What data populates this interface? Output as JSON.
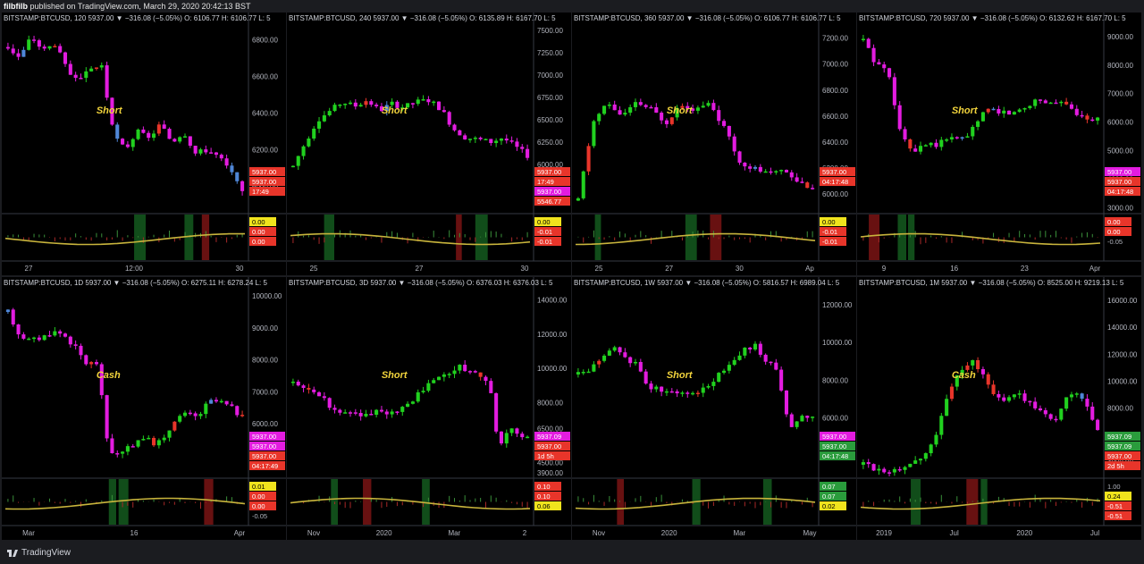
{
  "header": {
    "author": "filbfilb",
    "published": "published on TradingView.com, March 29, 2020 20:42:13 BST"
  },
  "footer": {
    "brand": "TradingView"
  },
  "colors": {
    "up": "#21d11f",
    "down": "#e31ce0",
    "red": "#e8352a",
    "blue": "#4f87d8",
    "ma": "#c8b43c",
    "annot": "#f1d33c",
    "arrow": "#3c8ad8"
  },
  "chart_data": [
    {
      "type": "candlestick",
      "header": "BITSTAMP:BTCUSD, 120  5937.00 ▼ −316.08 (−5.05%)  O: 6106.77  H: 6106.77  L: 5",
      "y_ticks": [
        "6800.00",
        "6600.00",
        "6400.00",
        "6200.00",
        "6000.00"
      ],
      "ylim": [
        5850,
        6880
      ],
      "x_ticks": [
        "27",
        "12:00",
        "30"
      ],
      "price_labels": [
        {
          "text": "5937.00",
          "bg": "#e8352a"
        },
        {
          "text": "5937.00",
          "bg": "#e8352a"
        },
        {
          "text": "17:49",
          "bg": "#e8352a"
        }
      ],
      "annotation": "Short",
      "indicator_labels": [
        {
          "text": "0.00",
          "bg": "#f0e31d",
          "fg": "#000"
        },
        {
          "text": "0.00",
          "bg": "#e8352a",
          "fg": "#fff"
        },
        {
          "text": "0.00",
          "bg": "#e8352a",
          "fg": "#fff"
        }
      ],
      "trend": [
        6760,
        6700,
        6820,
        6740,
        6780,
        6640,
        6560,
        6640,
        6660,
        6280,
        6200,
        6300,
        6260,
        6340,
        6240,
        6300,
        6180,
        6200,
        6160,
        6080,
        5960
      ],
      "seed": 3
    },
    {
      "type": "candlestick",
      "header": "BITSTAMP:BTCUSD, 240  5937.00 ▼ −316.08 (−5.05%)  O: 6135.89  H: 6167.70  L: 5",
      "y_ticks": [
        "7500.00",
        "7250.00",
        "7000.00",
        "6750.00",
        "6500.00",
        "6250.00",
        "6000.00"
      ],
      "ylim": [
        5450,
        7560
      ],
      "x_ticks": [
        "25",
        "27",
        "30"
      ],
      "price_labels": [
        {
          "text": "5937.00",
          "bg": "#e8352a"
        },
        {
          "text": "17:49",
          "bg": "#e8352a"
        },
        {
          "text": "5937.00",
          "bg": "#e31ce0"
        },
        {
          "text": "5546.77",
          "bg": "#e8352a"
        }
      ],
      "annotation": "Short",
      "indicator_labels": [
        {
          "text": "0.00",
          "bg": "#f0e31d",
          "fg": "#000"
        },
        {
          "text": "-0.01",
          "bg": "#e8352a",
          "fg": "#fff"
        },
        {
          "text": "-0.01",
          "bg": "#e8352a",
          "fg": "#fff"
        }
      ],
      "trend": [
        5980,
        6250,
        6500,
        6600,
        6700,
        6650,
        6720,
        6600,
        6680,
        6640,
        6700,
        6720,
        6620,
        6400,
        6300,
        6280,
        6250,
        6300,
        6200,
        6100
      ],
      "seed": 7
    },
    {
      "type": "candlestick",
      "header": "BITSTAMP:BTCUSD, 360  5937.00 ▼ −316.08 (−5.05%)  O: 6106.77  H: 6106.77  L: 5",
      "y_ticks": [
        "7200.00",
        "7000.00",
        "6800.00",
        "6600.00",
        "6400.00",
        "6200.00",
        "6000.00"
      ],
      "ylim": [
        5850,
        7300
      ],
      "x_ticks": [
        "25",
        "27",
        "30",
        "Ap"
      ],
      "price_labels": [
        {
          "text": "5937.00",
          "bg": "#e8352a"
        },
        {
          "text": "04:17:48",
          "bg": "#e8352a"
        }
      ],
      "annotation": "Short",
      "indicator_labels": [
        {
          "text": "0.00",
          "bg": "#f0e31d",
          "fg": "#000"
        },
        {
          "text": "-0.01",
          "bg": "#e8352a",
          "fg": "#fff"
        },
        {
          "text": "-0.01",
          "bg": "#e8352a",
          "fg": "#fff"
        }
      ],
      "trend": [
        5950,
        6550,
        6700,
        6600,
        6700,
        6650,
        6550,
        6700,
        6650,
        6700,
        6500,
        6250,
        6200,
        6150,
        6200,
        6100,
        6050
      ],
      "seed": 11
    },
    {
      "type": "candlestick",
      "header": "BITSTAMP:BTCUSD, 720  5937.00 ▼ −316.08 (−5.05%)  O: 6132.62  H: 6167.70  L: 5",
      "y_ticks": [
        "9000.00",
        "8000.00",
        "7000.00",
        "6000.00",
        "5000.00",
        "4000.00",
        "3000.00"
      ],
      "ylim": [
        2800,
        9400
      ],
      "x_ticks": [
        "9",
        "16",
        "23",
        "Apr"
      ],
      "price_labels": [
        {
          "text": "5937.00",
          "bg": "#e31ce0"
        },
        {
          "text": "5937.00",
          "bg": "#e8352a"
        },
        {
          "text": "04:17:48",
          "bg": "#e8352a"
        }
      ],
      "annotation": "Short",
      "indicator_labels": [
        {
          "text": "0.00",
          "bg": "#e8352a",
          "fg": "#fff"
        },
        {
          "text": "0.00",
          "bg": "#e8352a",
          "fg": "#fff"
        },
        {
          "text": "-0.05",
          "bg": "",
          "fg": "#b2b5be"
        }
      ],
      "trend": [
        8900,
        8000,
        7900,
        5600,
        5000,
        5300,
        5200,
        5500,
        5400,
        5800,
        6500,
        6400,
        6300,
        6500,
        6800,
        6700,
        6700,
        6400,
        6200,
        6100
      ],
      "seed": 13
    },
    {
      "type": "candlestick",
      "header": "BITSTAMP:BTCUSD, 1D  5937.00 ▼ −316.08 (−5.05%)  O: 6275.11  H: 6278.24  L: 5",
      "y_ticks": [
        "10000.00",
        "9000.00",
        "8000.00",
        "7000.00",
        "6000.00",
        "5000.00"
      ],
      "ylim": [
        4300,
        10200
      ],
      "x_ticks": [
        "Mar",
        "16",
        "Apr"
      ],
      "price_labels": [
        {
          "text": "5937.00",
          "bg": "#e31ce0"
        },
        {
          "text": "5937.00",
          "bg": "#e31ce0"
        },
        {
          "text": "5937.00",
          "bg": "#e8352a"
        },
        {
          "text": "04:17:49",
          "bg": "#e8352a"
        }
      ],
      "annotation": "Cash",
      "indicator_labels": [
        {
          "text": "0.01",
          "bg": "#f0e31d",
          "fg": "#000"
        },
        {
          "text": "0.00",
          "bg": "#e8352a",
          "fg": "#fff"
        },
        {
          "text": "0.00",
          "bg": "#e8352a",
          "fg": "#fff"
        },
        {
          "text": "-0.05",
          "bg": "",
          "fg": "#b2b5be"
        }
      ],
      "trend": [
        9500,
        8800,
        8600,
        8700,
        8900,
        8800,
        8400,
        7900,
        7900,
        5200,
        5000,
        5300,
        5600,
        5400,
        5500,
        6200,
        6300,
        6200,
        6700,
        6700,
        6500,
        6200
      ],
      "seed": 17
    },
    {
      "type": "candlestick",
      "header": "BITSTAMP:BTCUSD, 3D  5937.00 ▼ −316.08 (−5.05%)  O: 6376.03  H: 6376.03  L: 5",
      "y_ticks": [
        "14000.00",
        "12000.00",
        "10000.00",
        "8000.00",
        "6500.00",
        "5500.00",
        "4500.00",
        "3900.00"
      ],
      "ylim": [
        3600,
        14600
      ],
      "x_ticks": [
        "Nov",
        "2020",
        "Mar",
        "2"
      ],
      "price_labels": [
        {
          "text": "5937.09",
          "bg": "#e31ce0"
        },
        {
          "text": "5937.00",
          "bg": "#e8352a"
        },
        {
          "text": "1d 5h",
          "bg": "#e8352a"
        }
      ],
      "annotation": "Short",
      "indicator_labels": [
        {
          "text": "0.10",
          "bg": "#e8352a",
          "fg": "#fff"
        },
        {
          "text": "0.10",
          "bg": "#e8352a",
          "fg": "#fff"
        },
        {
          "text": "0.06",
          "bg": "#f0e31d",
          "fg": "#000"
        }
      ],
      "trend": [
        9200,
        9000,
        8700,
        8400,
        7800,
        7500,
        7300,
        7400,
        7200,
        7500,
        7300,
        7500,
        7900,
        8300,
        8800,
        9300,
        9700,
        9900,
        10100,
        9800,
        9600,
        8800,
        5200,
        6500,
        6200,
        6000
      ],
      "seed": 19
    },
    {
      "type": "candlestick",
      "header": "BITSTAMP:BTCUSD, 1W  5937.00 ▼ −316.08 (−5.05%)  O: 5816.57  H: 6989.04  L: 5",
      "y_ticks": [
        "12000.00",
        "10000.00",
        "8000.00",
        "6000.00",
        "4000.00"
      ],
      "ylim": [
        2800,
        12800
      ],
      "x_ticks": [
        "Nov",
        "2020",
        "Mar",
        "May"
      ],
      "price_labels": [
        {
          "text": "5937.00",
          "bg": "#e31ce0"
        },
        {
          "text": "5937.00",
          "bg": "#2a9c3c"
        },
        {
          "text": "04:17:48",
          "bg": "#2a9c3c"
        }
      ],
      "annotation": "Short",
      "indicator_labels": [
        {
          "text": "0.07",
          "bg": "#2a9c3c",
          "fg": "#fff"
        },
        {
          "text": "0.07",
          "bg": "#2a9c3c",
          "fg": "#fff"
        },
        {
          "text": "0.02",
          "bg": "#f0e31d",
          "fg": "#000"
        }
      ],
      "trend": [
        8300,
        8600,
        9000,
        9700,
        9200,
        8800,
        7600,
        7500,
        7300,
        7400,
        7300,
        7700,
        8300,
        8900,
        9500,
        9900,
        9000,
        8600,
        5400,
        6200,
        6000
      ],
      "seed": 23
    },
    {
      "type": "candlestick",
      "header": "BITSTAMP:BTCUSD, 1M  5937.00 ▼ −316.08 (−5.05%)  O: 8525.00  H: 9219.13  L: 5",
      "y_ticks": [
        "16000.00",
        "14000.00",
        "12000.00",
        "10000.00",
        "8000.00",
        "6000.00",
        "4000.00"
      ],
      "ylim": [
        2800,
        16800
      ],
      "x_ticks": [
        "2019",
        "Jul",
        "2020",
        "Jul"
      ],
      "price_labels": [
        {
          "text": "5937.09",
          "bg": "#2a9c3c"
        },
        {
          "text": "5937.09",
          "bg": "#2a9c3c"
        },
        {
          "text": "5937.00",
          "bg": "#e8352a"
        },
        {
          "text": "2d 5h",
          "bg": "#e8352a"
        }
      ],
      "annotation": "Cash",
      "indicator_labels": [
        {
          "text": "1.00",
          "bg": "",
          "fg": "#b2b5be"
        },
        {
          "text": "0.24",
          "bg": "#f0e31d",
          "fg": "#000"
        },
        {
          "text": "-0.51",
          "bg": "#e8352a",
          "fg": "#fff"
        },
        {
          "text": "-0.51",
          "bg": "#e8352a",
          "fg": "#fff"
        }
      ],
      "trend": [
        3800,
        3500,
        3400,
        3700,
        4100,
        5300,
        8500,
        10800,
        11500,
        10000,
        8300,
        9200,
        8400,
        7500,
        7200,
        9300,
        8600,
        6400
      ],
      "seed": 29
    }
  ]
}
